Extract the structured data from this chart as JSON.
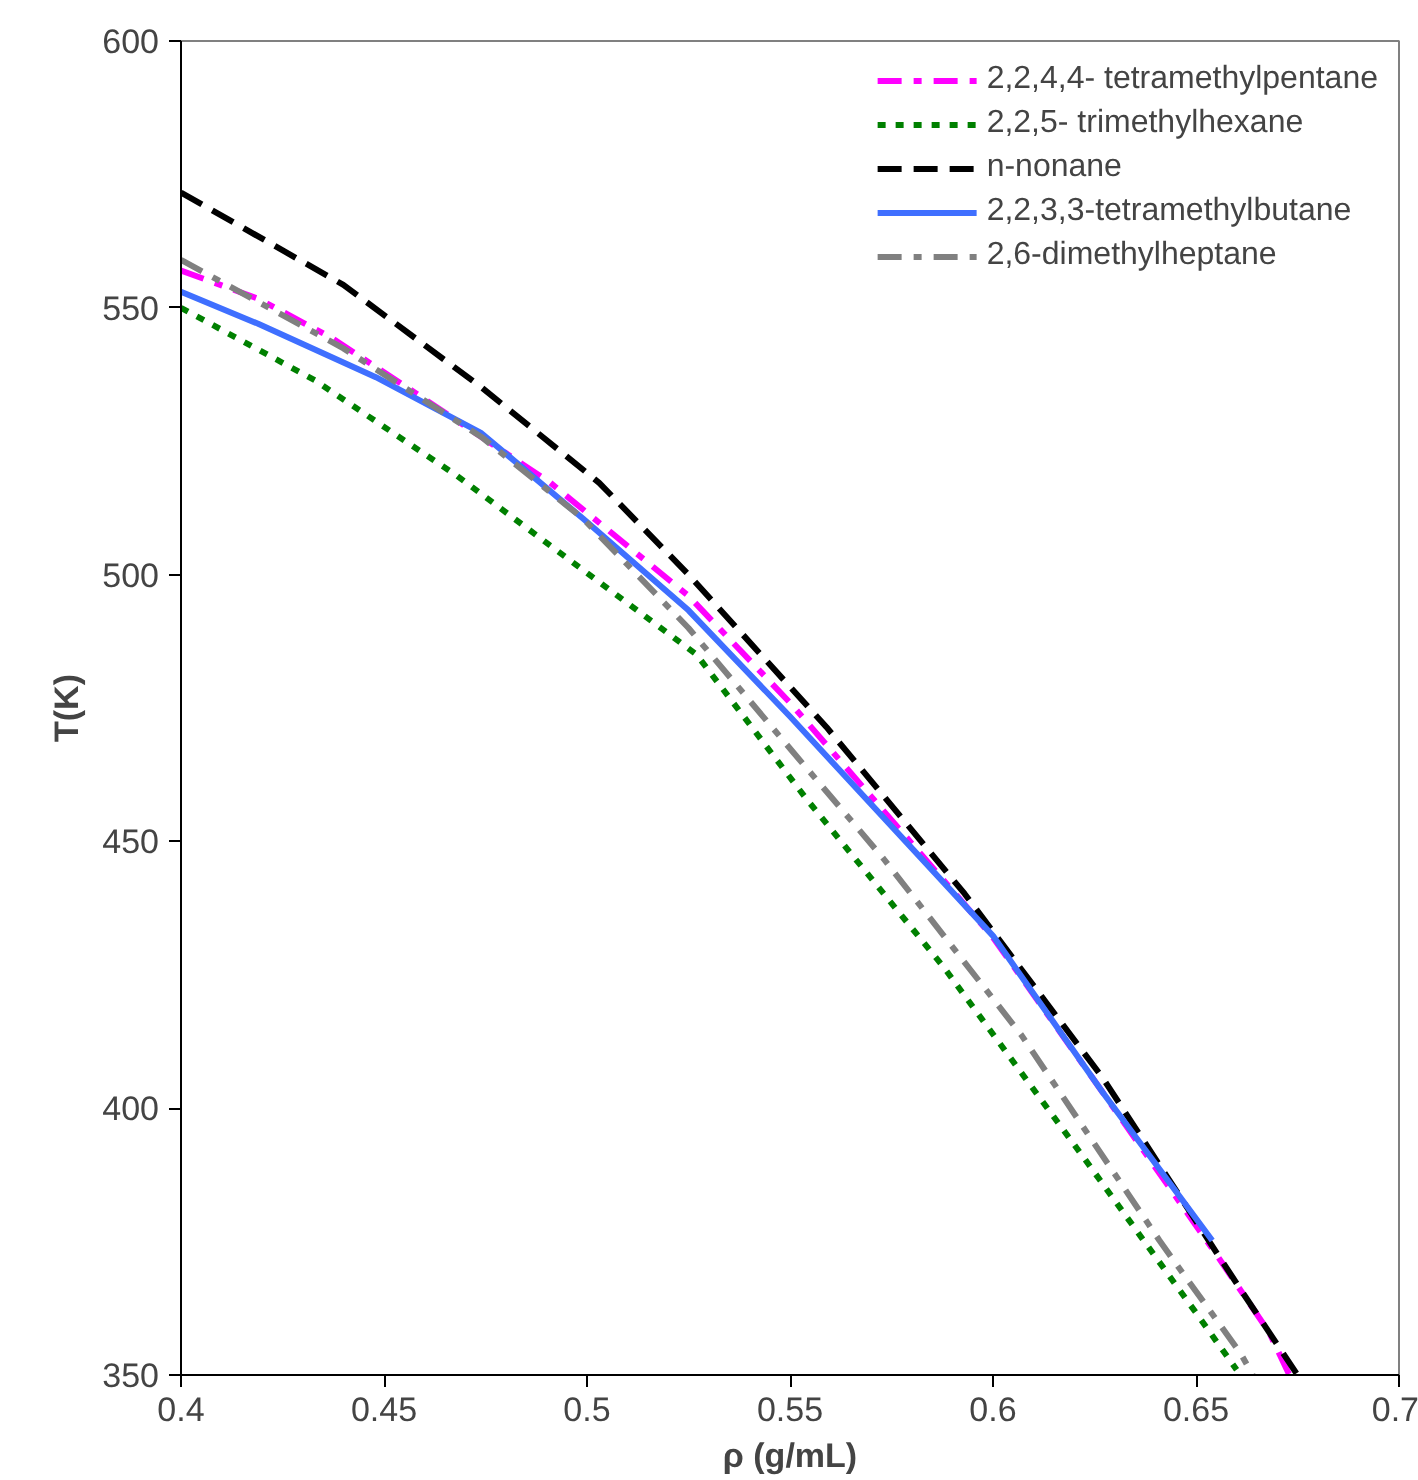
{
  "chart_data": {
    "type": "line",
    "xlabel": "ρ (g/mL)",
    "ylabel": "T(K)",
    "xlim": [
      0.4,
      0.7
    ],
    "ylim": [
      350,
      600
    ],
    "xticks": [
      0.4,
      0.45,
      0.5,
      0.55,
      0.6,
      0.65,
      0.7
    ],
    "yticks": [
      350,
      400,
      450,
      500,
      550,
      600
    ],
    "grid": false,
    "legend": "top right",
    "marker": "none",
    "series": [
      {
        "name": "2,2,4,4- tetramethylpentane",
        "color": "#ff00ff",
        "line_style": "dashdot",
        "x": [
          0.4,
          0.419,
          0.437,
          0.457,
          0.491,
          0.525,
          0.55,
          0.6,
          0.627,
          0.655,
          0.668,
          0.673
        ],
        "values": [
          557,
          551.7,
          544.4,
          534.4,
          517.2,
          496,
          476,
          432,
          403,
          372.6,
          358,
          350
        ]
      },
      {
        "name": "2,2,5- trimethylhexane",
        "color": "#008000",
        "line_style": "dotted",
        "x": [
          0.4,
          0.433,
          0.468,
          0.503,
          0.527,
          0.554,
          0.588,
          0.622,
          0.651,
          0.66
        ],
        "values": [
          550,
          536.4,
          518.5,
          498.6,
          485,
          458,
          426.3,
          391.1,
          360.6,
          351
        ]
      },
      {
        "name": "n-nonane",
        "color": "#000000",
        "line_style": "dashed",
        "x": [
          0.4,
          0.44,
          0.474,
          0.503,
          0.525,
          0.559,
          0.593,
          0.627,
          0.661,
          0.675
        ],
        "values": [
          571.6,
          554.3,
          535.1,
          517.2,
          500,
          471.4,
          440.2,
          405.7,
          366,
          350
        ]
      },
      {
        "name": "2,2,3,3-tetramethylbutane",
        "color": "#3f6fff",
        "line_style": "solid",
        "x": [
          0.4,
          0.419,
          0.448,
          0.474,
          0.499,
          0.525,
          0.55,
          0.6,
          0.627,
          0.654
        ],
        "values": [
          553,
          547,
          537,
          526.5,
          510.5,
          493.3,
          473.4,
          432.3,
          403,
          375.2
        ]
      },
      {
        "name": "2,6-dimethylheptane",
        "color": "#808080",
        "line_style": "dashdot",
        "x": [
          0.4,
          0.44,
          0.474,
          0.499,
          0.525,
          0.55,
          0.573,
          0.607,
          0.641,
          0.661,
          0.664
        ],
        "values": [
          559,
          542.4,
          525.8,
          510.5,
          490,
          467.4,
          446.8,
          413.7,
          375.2,
          354,
          350
        ]
      }
    ]
  }
}
